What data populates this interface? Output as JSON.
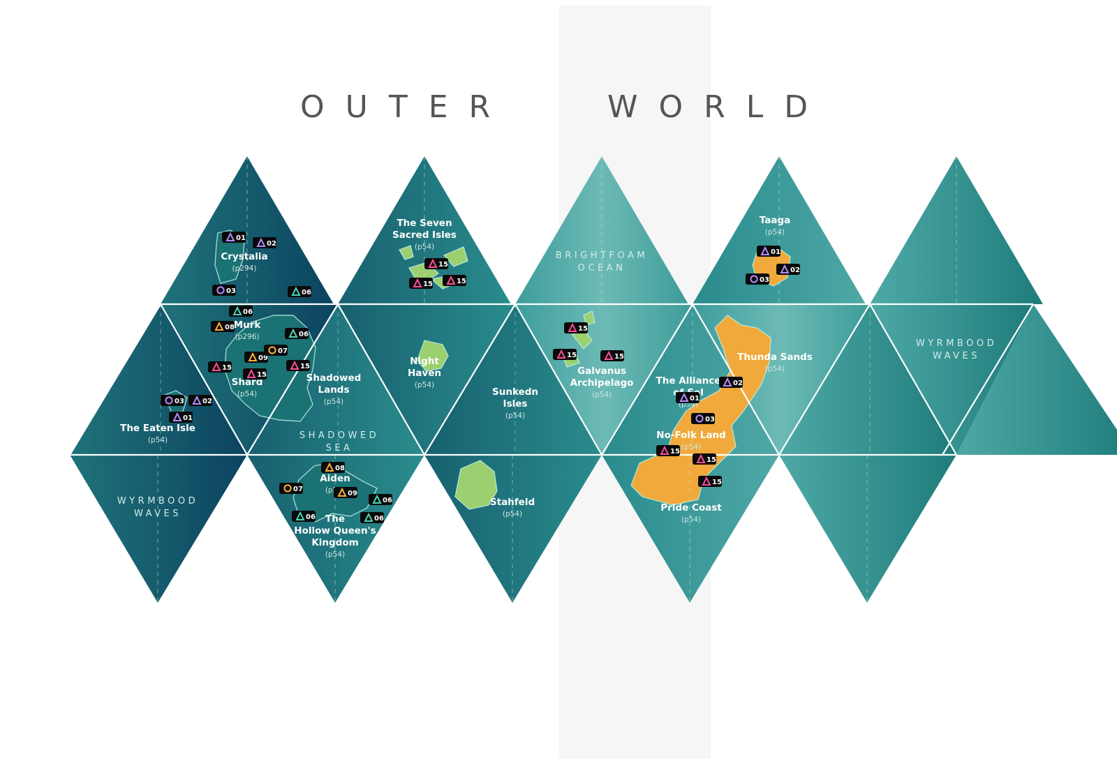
{
  "title": {
    "word1": "OUTER",
    "word2": "WORLD"
  },
  "colors": {
    "deep": "#0d4a63",
    "mid": "#1f7a82",
    "light": "#5fb3b0",
    "land_green": "#9ccf6f",
    "land_orange": "#f0a93a",
    "land_teal": "#1a7274",
    "marker_bg": "#0a0a0a",
    "marker_pink": "#ff4d9a",
    "marker_purple": "#b58bff",
    "marker_orange": "#ffb13a",
    "marker_teal": "#49d5b5"
  },
  "oceans": [
    {
      "id": "shadowed-sea",
      "lines": [
        "SHADOWED",
        "SEA"
      ]
    },
    {
      "id": "brightfoam-ocean",
      "lines": [
        "BRIGHTFOAM",
        "OCEAN"
      ]
    },
    {
      "id": "wyrmbood-waves-left",
      "lines": [
        "WYRMBOOD",
        "WAVES"
      ]
    },
    {
      "id": "wyrmbood-waves-right",
      "lines": [
        "WYRMBOOD",
        "WAVES"
      ]
    }
  ],
  "regions": [
    {
      "id": "crystalia",
      "lines": [
        "Crystalia"
      ],
      "page": "(p294)"
    },
    {
      "id": "seven-sacred-isles",
      "lines": [
        "The Seven",
        "Sacred Isles"
      ],
      "page": "(p54)"
    },
    {
      "id": "taaga",
      "lines": [
        "Taaga"
      ],
      "page": "(p54)"
    },
    {
      "id": "murk",
      "lines": [
        "Murk"
      ],
      "page": "(p296)"
    },
    {
      "id": "shard",
      "lines": [
        "Shard"
      ],
      "page": "(p54)"
    },
    {
      "id": "shadowed-lands",
      "lines": [
        "Shadowed",
        "Lands"
      ],
      "page": "(p54)"
    },
    {
      "id": "eaten-isle",
      "lines": [
        "The Eaten Isle"
      ],
      "page": "(p54)"
    },
    {
      "id": "night-haven",
      "lines": [
        "Night",
        "Haven"
      ],
      "page": "(p54)"
    },
    {
      "id": "sunkedn-isles",
      "lines": [
        "Sunkedn",
        "Isles"
      ],
      "page": "(p54)"
    },
    {
      "id": "galvanus-archipelago",
      "lines": [
        "Galvanus",
        "Archipelago"
      ],
      "page": "(p54)"
    },
    {
      "id": "alliance-of-sol",
      "lines": [
        "The Alliance",
        "of Sol"
      ],
      "page": "(p54)"
    },
    {
      "id": "thunda-sands",
      "lines": [
        "Thunda Sands"
      ],
      "page": "(p54)"
    },
    {
      "id": "no-folk-land",
      "lines": [
        "No-Folk Land"
      ],
      "page": "(p54)"
    },
    {
      "id": "aiden",
      "lines": [
        "Aiden"
      ],
      "page": "(p54)"
    },
    {
      "id": "hollow-queens-kingdom",
      "lines": [
        "The",
        "Hollow Queen's",
        "Kingdom"
      ],
      "page": "(p54)"
    },
    {
      "id": "stahfeld",
      "lines": [
        "Stahfeld"
      ],
      "page": "(p54)"
    },
    {
      "id": "pride-coast",
      "lines": [
        "Pride Coast"
      ],
      "page": "(p54)"
    }
  ],
  "markers": [
    {
      "shape": "triangle",
      "color": "purple",
      "num": "01"
    },
    {
      "shape": "triangle",
      "color": "purple",
      "num": "02"
    },
    {
      "shape": "circle",
      "color": "purple",
      "num": "03"
    },
    {
      "shape": "triangle",
      "color": "teal",
      "num": "06"
    },
    {
      "shape": "triangle",
      "color": "teal",
      "num": "06"
    },
    {
      "shape": "triangle",
      "color": "orange",
      "num": "08"
    },
    {
      "shape": "triangle",
      "color": "teal",
      "num": "06"
    },
    {
      "shape": "triangle",
      "color": "orange",
      "num": "09"
    },
    {
      "shape": "circle",
      "color": "orange",
      "num": "07"
    },
    {
      "shape": "triangle",
      "color": "pink",
      "num": "15"
    },
    {
      "shape": "triangle",
      "color": "pink",
      "num": "15"
    },
    {
      "shape": "triangle",
      "color": "pink",
      "num": "15"
    },
    {
      "shape": "circle",
      "color": "purple",
      "num": "03"
    },
    {
      "shape": "triangle",
      "color": "purple",
      "num": "02"
    },
    {
      "shape": "triangle",
      "color": "purple",
      "num": "01"
    },
    {
      "shape": "triangle",
      "color": "pink",
      "num": "15"
    },
    {
      "shape": "triangle",
      "color": "pink",
      "num": "15"
    },
    {
      "shape": "triangle",
      "color": "pink",
      "num": "15"
    },
    {
      "shape": "triangle",
      "color": "purple",
      "num": "01"
    },
    {
      "shape": "triangle",
      "color": "purple",
      "num": "02"
    },
    {
      "shape": "circle",
      "color": "purple",
      "num": "03"
    },
    {
      "shape": "triangle",
      "color": "pink",
      "num": "15"
    },
    {
      "shape": "triangle",
      "color": "pink",
      "num": "15"
    },
    {
      "shape": "triangle",
      "color": "pink",
      "num": "15"
    },
    {
      "shape": "triangle",
      "color": "purple",
      "num": "02"
    },
    {
      "shape": "triangle",
      "color": "purple",
      "num": "01"
    },
    {
      "shape": "circle",
      "color": "purple",
      "num": "03"
    },
    {
      "shape": "triangle",
      "color": "pink",
      "num": "15"
    },
    {
      "shape": "triangle",
      "color": "pink",
      "num": "15"
    },
    {
      "shape": "triangle",
      "color": "pink",
      "num": "15"
    },
    {
      "shape": "triangle",
      "color": "orange",
      "num": "08"
    },
    {
      "shape": "circle",
      "color": "orange",
      "num": "07"
    },
    {
      "shape": "triangle",
      "color": "orange",
      "num": "09"
    },
    {
      "shape": "triangle",
      "color": "teal",
      "num": "06"
    },
    {
      "shape": "triangle",
      "color": "teal",
      "num": "06"
    },
    {
      "shape": "triangle",
      "color": "teal",
      "num": "06"
    }
  ]
}
